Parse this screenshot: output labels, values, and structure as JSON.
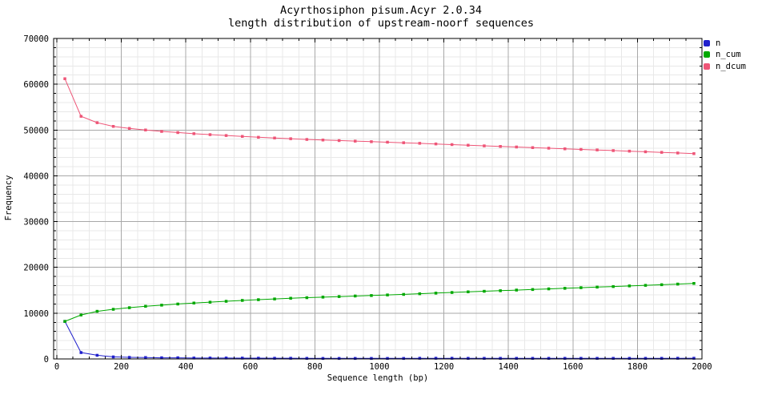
{
  "chart_data": {
    "type": "line",
    "title": "Acyrthosiphon pisum.Acyr 2.0.34",
    "subtitle": "length distribution of upstream-noorf sequences",
    "xlabel": "Sequence length (bp)",
    "ylabel": "Frequency",
    "xlim": [
      0,
      2000
    ],
    "ylim": [
      0,
      70000
    ],
    "xticks": [
      0,
      200,
      400,
      600,
      800,
      1000,
      1200,
      1400,
      1600,
      1800,
      2000
    ],
    "yticks": [
      0,
      10000,
      20000,
      30000,
      40000,
      50000,
      60000,
      70000
    ],
    "x_minor_step": 50,
    "y_minor_step": 2000,
    "grid": true,
    "legend_position": "top-right-outside",
    "marker": "square",
    "x": [
      25,
      75,
      125,
      175,
      225,
      275,
      325,
      375,
      425,
      475,
      525,
      575,
      625,
      675,
      725,
      775,
      825,
      875,
      925,
      975,
      1025,
      1075,
      1125,
      1175,
      1225,
      1275,
      1325,
      1375,
      1425,
      1475,
      1525,
      1575,
      1625,
      1675,
      1725,
      1775,
      1825,
      1875,
      1925,
      1975
    ],
    "series": [
      {
        "name": "n",
        "color": "#2020CC",
        "values": [
          8200,
          1400,
          800,
          450,
          350,
          300,
          250,
          250,
          200,
          200,
          200,
          180,
          170,
          150,
          150,
          130,
          120,
          120,
          120,
          120,
          120,
          120,
          140,
          140,
          140,
          130,
          130,
          130,
          130,
          130,
          130,
          130,
          130,
          130,
          130,
          130,
          130,
          130,
          140,
          150
        ]
      },
      {
        "name": "n_cum",
        "color": "#00A800",
        "values": [
          8200,
          9600,
          10400,
          10850,
          11200,
          11500,
          11750,
          12000,
          12200,
          12400,
          12600,
          12780,
          12950,
          13100,
          13250,
          13380,
          13500,
          13620,
          13740,
          13860,
          13980,
          14100,
          14240,
          14380,
          14520,
          14650,
          14780,
          14910,
          15040,
          15170,
          15300,
          15430,
          15560,
          15690,
          15820,
          15950,
          16080,
          16210,
          16350,
          16500
        ]
      },
      {
        "name": "n_dcum",
        "color": "#EE5577",
        "values": [
          61200,
          53000,
          51600,
          50800,
          50350,
          50000,
          49700,
          49450,
          49200,
          49000,
          48800,
          48600,
          48420,
          48250,
          48100,
          47950,
          47820,
          47700,
          47580,
          47460,
          47340,
          47220,
          47100,
          46960,
          46820,
          46680,
          46550,
          46420,
          46290,
          46160,
          46030,
          45900,
          45770,
          45640,
          45510,
          45380,
          45250,
          45120,
          44990,
          44850
        ]
      }
    ],
    "colors": {
      "background": "#FFFFFF",
      "border": "#000000",
      "major_grid": "#A8A8A8",
      "minor_grid": "#E8E8E8",
      "text": "#000000"
    }
  }
}
